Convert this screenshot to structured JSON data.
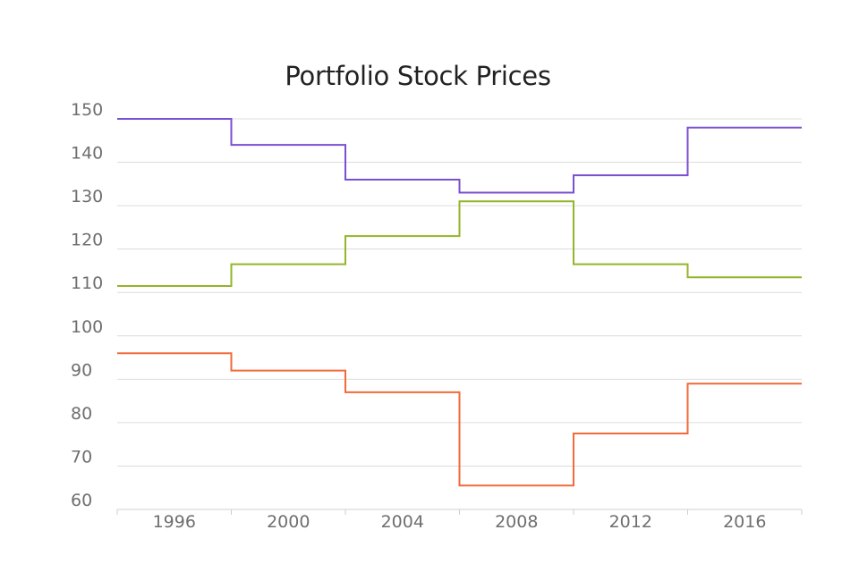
{
  "chart_data": {
    "type": "line",
    "step": "after",
    "title": "Portfolio Stock Prices",
    "xlabel": "",
    "ylabel": "",
    "xlim": [
      1994,
      2018
    ],
    "ylim": [
      60,
      150
    ],
    "x_ticks": [
      1996,
      2000,
      2004,
      2008,
      2012,
      2016
    ],
    "y_ticks": [
      60,
      70,
      80,
      90,
      100,
      110,
      120,
      130,
      140,
      150
    ],
    "grid": "horizontal",
    "x": [
      1994,
      1998,
      2002,
      2006,
      2010,
      2014,
      2018
    ],
    "series": [
      {
        "values": [
          150,
          144,
          136,
          133,
          137,
          148,
          148
        ],
        "color": "#7b4fd1"
      },
      {
        "values": [
          111.5,
          116.5,
          123,
          131,
          116.5,
          113.5,
          113.5
        ],
        "color": "#93b529"
      },
      {
        "values": [
          96,
          92,
          87,
          65.5,
          77.5,
          89,
          89
        ],
        "color": "#f26a39"
      }
    ]
  }
}
